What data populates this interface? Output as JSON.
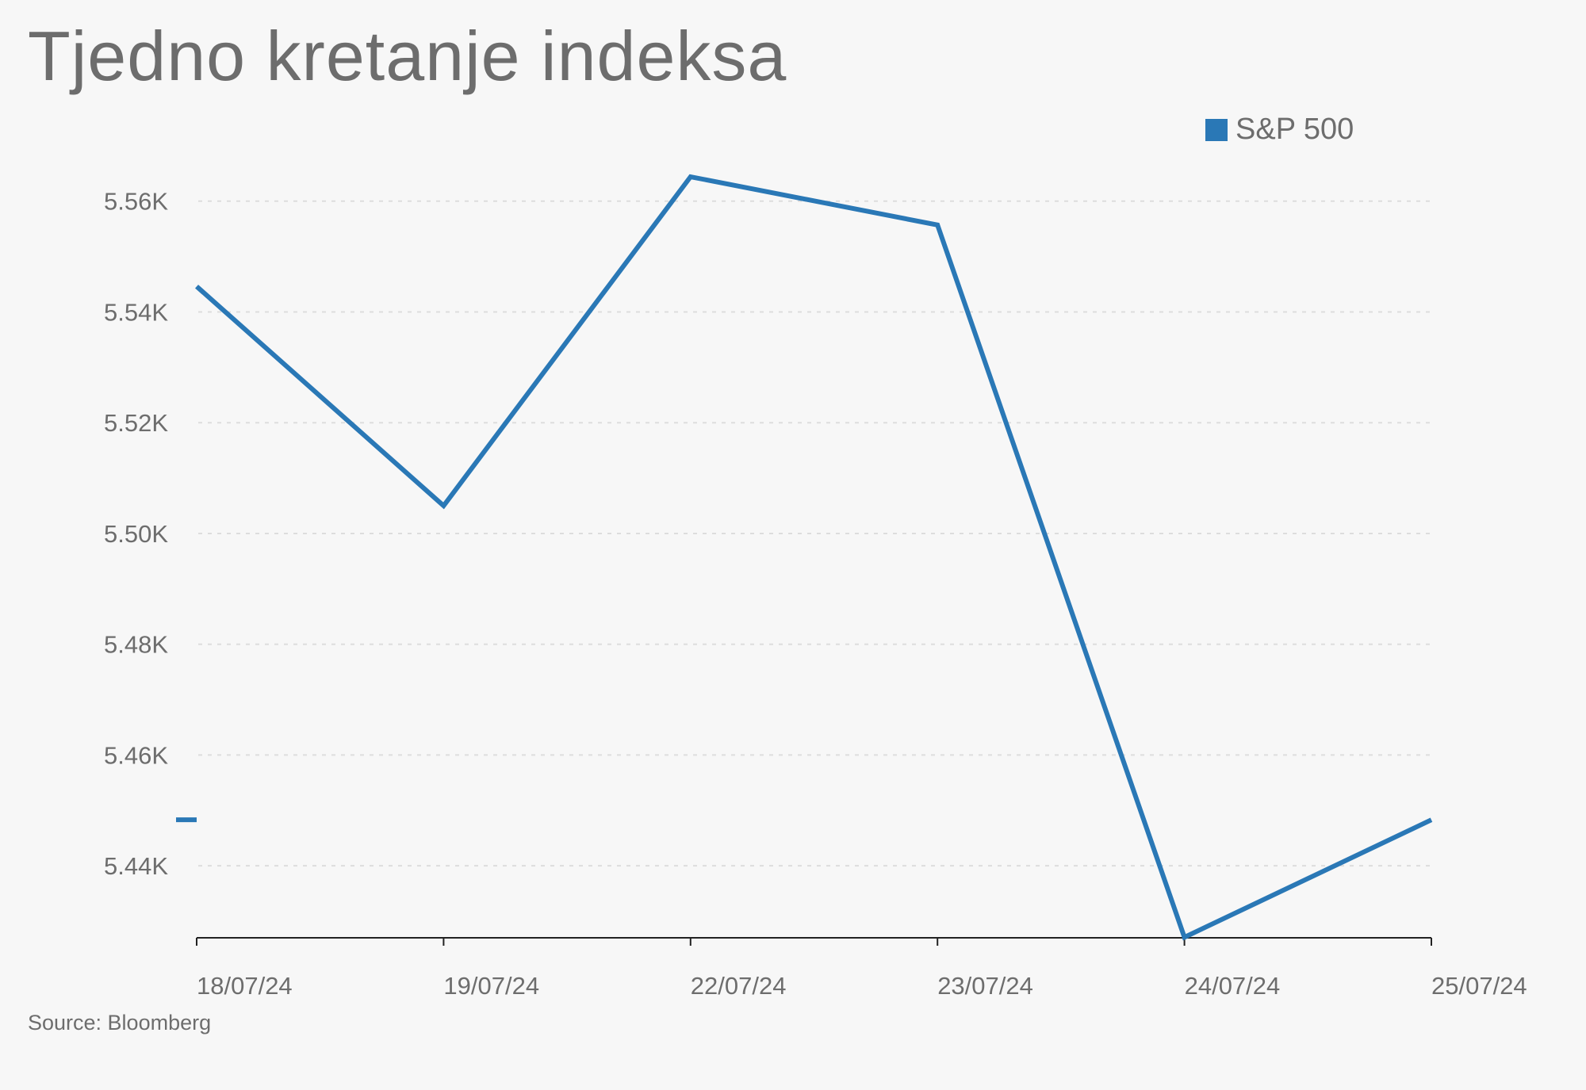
{
  "colors": {
    "series": "#2a78b6",
    "grid": "#dddddd",
    "text": "#6d6d6d",
    "axis": "#222222",
    "background": "#f7f7f7"
  },
  "chart_data": {
    "type": "line",
    "title": "Tjedno kretanje indeksa",
    "source": "Source: Bloomberg",
    "xlabel": "",
    "ylabel": "",
    "x": [
      "18/07/24",
      "19/07/24",
      "22/07/24",
      "23/07/24",
      "24/07/24",
      "25/07/24"
    ],
    "y_ticks": [
      5440,
      5460,
      5480,
      5500,
      5520,
      5540,
      5560
    ],
    "y_tick_labels": [
      "5.44K",
      "5.46K",
      "5.48K",
      "5.50K",
      "5.52K",
      "5.54K",
      "5.56K"
    ],
    "ylim": [
      5427,
      5564.4
    ],
    "grid": "horizontal dashed",
    "legend_position": "top-right",
    "series": [
      {
        "name": "S&P 500",
        "values": [
          5544.6,
          5505.0,
          5564.4,
          5555.7,
          5427.1,
          5448.3
        ]
      }
    ]
  }
}
